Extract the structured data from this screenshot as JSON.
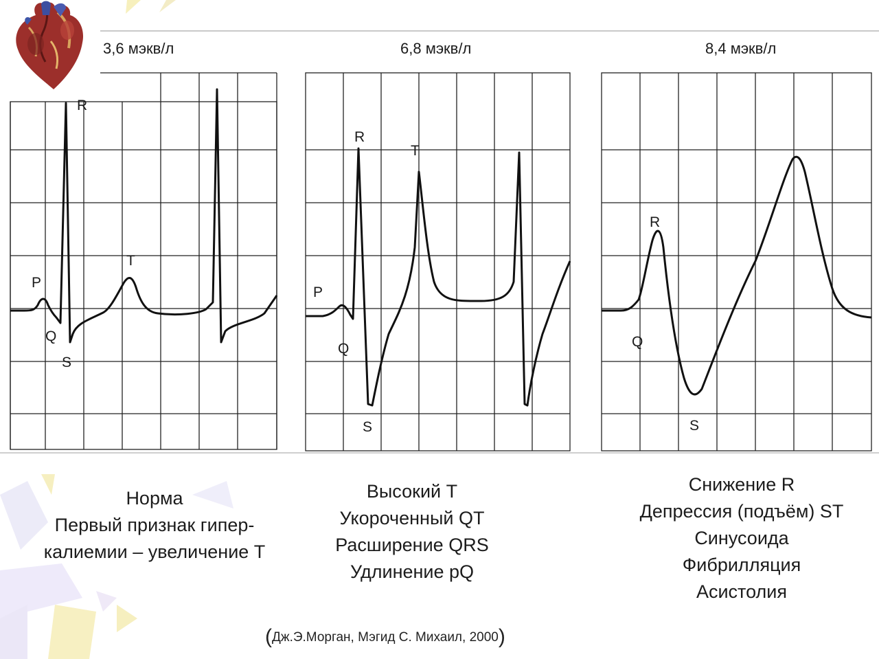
{
  "concentrations": [
    "3,6 мэкв/л",
    "6,8 мэкв/л",
    "8,4 мэкв/л"
  ],
  "wave_labels": {
    "panel1": {
      "p": "P",
      "q": "Q",
      "r": "R",
      "s": "S",
      "t": "T"
    },
    "panel2": {
      "p": "P",
      "q": "Q",
      "r": "R",
      "s": "S",
      "t": "T"
    },
    "panel3": {
      "q": "Q",
      "r": "R",
      "s": "S"
    }
  },
  "captions": {
    "panel1": [
      "Норма",
      "Первый признак гипер-",
      "калиемии – увеличение Т"
    ],
    "panel2": [
      "Высокий Т",
      "Укороченный QT",
      "Расширение QRS",
      "Удлинение pQ"
    ],
    "panel3": [
      "Снижение R",
      "Депрессия (подъём) ST",
      "Синусоида",
      "Фибрилляция",
      "Асистолия"
    ]
  },
  "source": {
    "open": "(",
    "text": "Дж.Э.Морган, Мэгид С. Михаил, 2000",
    "close": ")"
  },
  "colors": {
    "trace": "#111111",
    "grid": "#222222",
    "ray_yellow": "#f6eeb4",
    "ray_lilac": "#e6e2f6"
  },
  "icons": {
    "heart": "heart-anatomy-icon"
  }
}
